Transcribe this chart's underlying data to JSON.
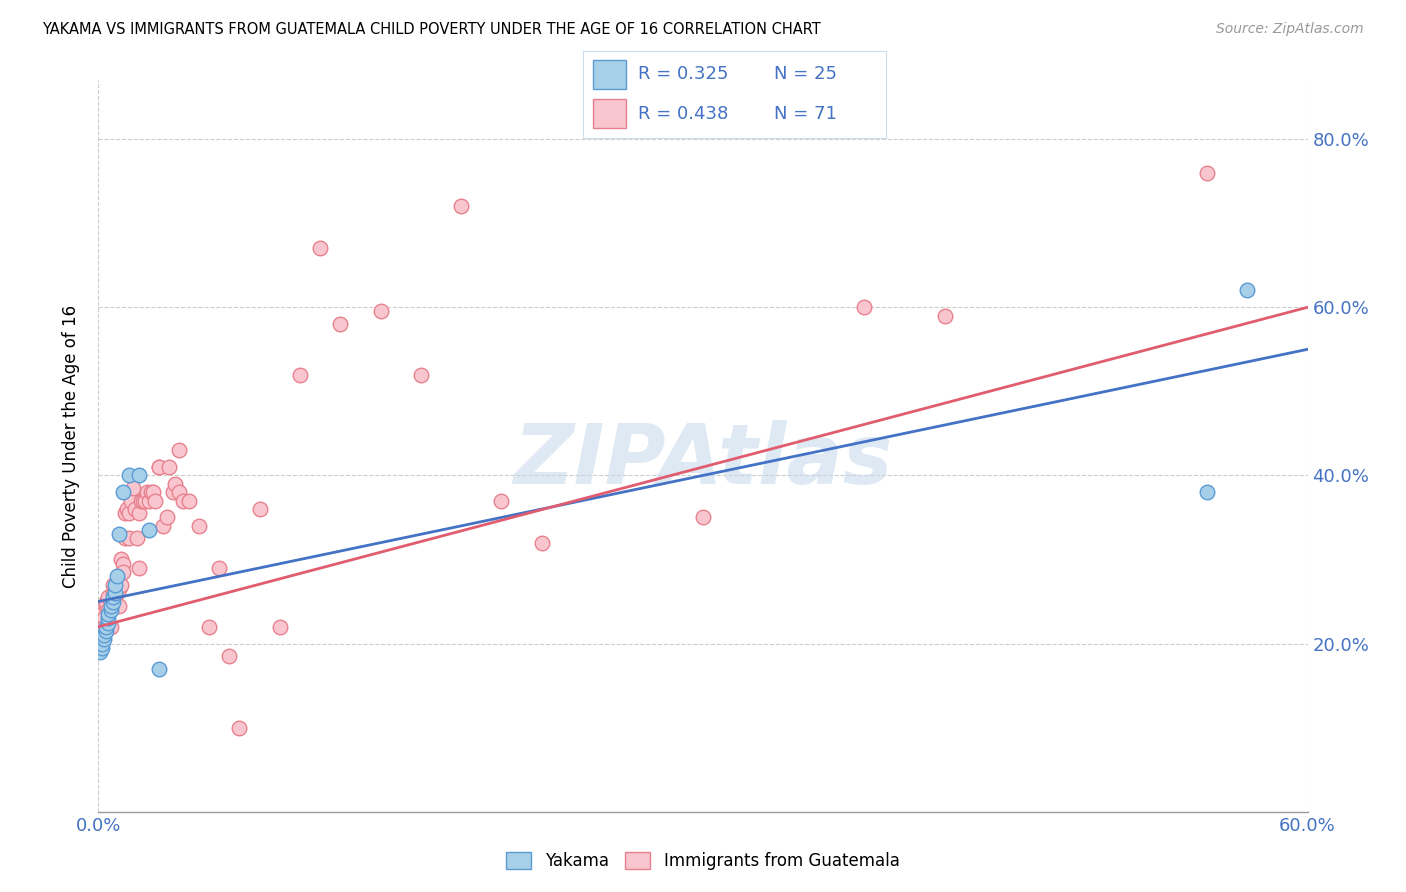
{
  "title": "YAKAMA VS IMMIGRANTS FROM GUATEMALA CHILD POVERTY UNDER THE AGE OF 16 CORRELATION CHART",
  "source": "Source: ZipAtlas.com",
  "ylabel": "Child Poverty Under the Age of 16",
  "ytick_labels": [
    "20.0%",
    "40.0%",
    "60.0%",
    "80.0%"
  ],
  "ytick_values": [
    0.2,
    0.4,
    0.6,
    0.8
  ],
  "xmin": 0.0,
  "xmax": 0.6,
  "ymin": 0.0,
  "ymax": 0.87,
  "color_yakama_fill": "#a8cfe8",
  "color_yakama_edge": "#5b9bd5",
  "color_guatemala_fill": "#f9c6cf",
  "color_guatemala_edge": "#e8818e",
  "color_line_yakama": "#4472c4",
  "color_line_guatemala": "#e05c6e",
  "watermark": "ZIPAtlas",
  "legend_box_color": "#e8f0fb",
  "legend_border_color": "#b8ccea",
  "yakama_x": [
    0.001,
    0.002,
    0.002,
    0.003,
    0.003,
    0.004,
    0.004,
    0.005,
    0.005,
    0.005,
    0.006,
    0.006,
    0.007,
    0.007,
    0.008,
    0.008,
    0.009,
    0.01,
    0.012,
    0.015,
    0.02,
    0.025,
    0.03,
    0.55,
    0.57
  ],
  "yakama_y": [
    0.19,
    0.195,
    0.2,
    0.205,
    0.21,
    0.215,
    0.22,
    0.225,
    0.23,
    0.235,
    0.24,
    0.245,
    0.25,
    0.255,
    0.26,
    0.27,
    0.28,
    0.33,
    0.38,
    0.4,
    0.4,
    0.335,
    0.17,
    0.38,
    0.62
  ],
  "guatemala_x": [
    0.001,
    0.002,
    0.003,
    0.003,
    0.004,
    0.004,
    0.005,
    0.005,
    0.006,
    0.006,
    0.007,
    0.007,
    0.008,
    0.008,
    0.009,
    0.009,
    0.01,
    0.01,
    0.011,
    0.011,
    0.012,
    0.012,
    0.013,
    0.013,
    0.014,
    0.015,
    0.015,
    0.016,
    0.017,
    0.018,
    0.019,
    0.02,
    0.02,
    0.021,
    0.022,
    0.023,
    0.024,
    0.025,
    0.026,
    0.027,
    0.028,
    0.03,
    0.03,
    0.032,
    0.034,
    0.035,
    0.037,
    0.038,
    0.04,
    0.04,
    0.042,
    0.045,
    0.05,
    0.055,
    0.06,
    0.065,
    0.07,
    0.08,
    0.09,
    0.1,
    0.11,
    0.12,
    0.14,
    0.16,
    0.18,
    0.2,
    0.22,
    0.3,
    0.38,
    0.42,
    0.55
  ],
  "guatemala_y": [
    0.24,
    0.235,
    0.23,
    0.22,
    0.245,
    0.25,
    0.24,
    0.255,
    0.245,
    0.22,
    0.26,
    0.27,
    0.265,
    0.255,
    0.27,
    0.26,
    0.265,
    0.245,
    0.3,
    0.27,
    0.295,
    0.285,
    0.355,
    0.325,
    0.36,
    0.355,
    0.325,
    0.37,
    0.385,
    0.36,
    0.325,
    0.355,
    0.29,
    0.37,
    0.37,
    0.37,
    0.38,
    0.37,
    0.38,
    0.38,
    0.37,
    0.41,
    0.41,
    0.34,
    0.35,
    0.41,
    0.38,
    0.39,
    0.43,
    0.38,
    0.37,
    0.37,
    0.34,
    0.22,
    0.29,
    0.185,
    0.1,
    0.36,
    0.22,
    0.52,
    0.67,
    0.58,
    0.595,
    0.52,
    0.72,
    0.37,
    0.32,
    0.35,
    0.6,
    0.59,
    0.76
  ],
  "trendline_yakama": [
    0.25,
    0.55
  ],
  "trendline_guatemala": [
    0.22,
    0.6
  ]
}
